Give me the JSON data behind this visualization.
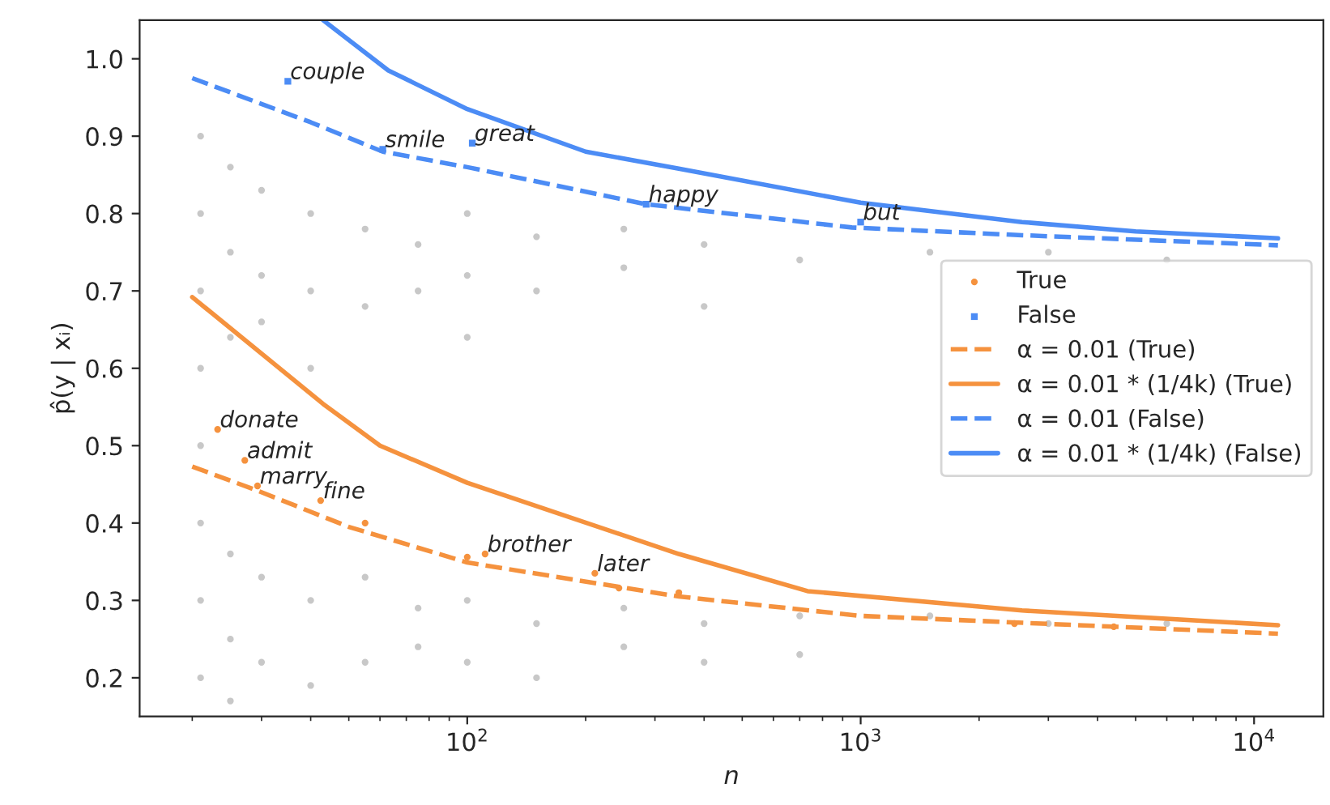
{
  "chart_data": {
    "type": "scatter",
    "xlabel": "n",
    "ylabel": "p̂(y | xᵢ)",
    "log": "x",
    "xlim": [
      14.7,
      15000
    ],
    "ylim": [
      0.15,
      1.05
    ],
    "xticks": [
      {
        "value": 100,
        "label": "10$^{2}$"
      },
      {
        "value": 1000,
        "label": "10$^{3}$"
      },
      {
        "value": 10000,
        "label": "10$^{4}$"
      }
    ],
    "yticks": [
      0.2,
      0.3,
      0.4,
      0.5,
      0.6,
      0.7,
      0.8,
      0.9,
      {
        "value": 1.0,
        "label": "1.0"
      }
    ],
    "grid": false,
    "legend": "center right",
    "series": [
      {
        "color": "#c8c8c8",
        "marker": "circle",
        "x": [
          21,
          21,
          21,
          21,
          21,
          21,
          21,
          21,
          25,
          25,
          25,
          25,
          25,
          25,
          30,
          30,
          30,
          30,
          30,
          40,
          40,
          40,
          40,
          40,
          55,
          55,
          55,
          55,
          75,
          75,
          75,
          75,
          100,
          100,
          100,
          100,
          100,
          150,
          150,
          150,
          150,
          250,
          250,
          250,
          250,
          400,
          400,
          400,
          400,
          700,
          700,
          700,
          1500,
          1500,
          3000,
          3000,
          6000,
          6000
        ],
        "values": [
          0.9,
          0.8,
          0.7,
          0.6,
          0.5,
          0.4,
          0.3,
          0.2,
          0.86,
          0.75,
          0.64,
          0.36,
          0.25,
          0.17,
          0.83,
          0.72,
          0.66,
          0.33,
          0.22,
          0.8,
          0.7,
          0.6,
          0.3,
          0.19,
          0.78,
          0.68,
          0.33,
          0.22,
          0.76,
          0.7,
          0.29,
          0.24,
          0.8,
          0.72,
          0.64,
          0.3,
          0.22,
          0.77,
          0.7,
          0.27,
          0.2,
          0.78,
          0.73,
          0.29,
          0.24,
          0.76,
          0.68,
          0.27,
          0.22,
          0.74,
          0.28,
          0.23,
          0.75,
          0.28,
          0.75,
          0.27,
          0.74,
          0.27
        ]
      },
      {
        "name": "True",
        "color": "#f5923e",
        "marker": "circle",
        "x": [
          23.2,
          27.2,
          29.3,
          42.4,
          55,
          100,
          111,
          211,
          243,
          345,
          2460,
          4400
        ],
        "values": [
          0.521,
          0.481,
          0.448,
          0.429,
          0.4,
          0.356,
          0.36,
          0.335,
          0.316,
          0.31,
          0.27,
          0.266
        ]
      },
      {
        "name": "False",
        "color": "#4c8cf5",
        "marker": "square",
        "x": [
          35,
          61,
          103,
          285,
          1000
        ],
        "values": [
          0.971,
          0.883,
          0.891,
          0.812,
          0.789
        ]
      },
      {
        "type": "line",
        "name": "α = 0.01 (True)",
        "color": "#f5923e",
        "line_style": "dashed",
        "marker": "none",
        "x": [
          20,
          29.6,
          50,
          100,
          345,
          1000,
          11500
        ],
        "values": [
          0.473,
          0.441,
          0.395,
          0.349,
          0.305,
          0.28,
          0.257
        ]
      },
      {
        "type": "line",
        "name": "α = 0.01 * (1/4k) (True)",
        "color": "#f5923e",
        "line_style": "solid",
        "marker": "none",
        "x": [
          20,
          43,
          60,
          100,
          345,
          733,
          2570,
          11500
        ],
        "values": [
          0.692,
          0.554,
          0.5,
          0.452,
          0.36,
          0.312,
          0.287,
          0.268
        ]
      },
      {
        "type": "line",
        "name": "α = 0.01 (False)",
        "color": "#4c8cf5",
        "line_style": "dashed",
        "marker": "none",
        "x": [
          20,
          40,
          61,
          100,
          285,
          950,
          2570,
          11500
        ],
        "values": [
          0.975,
          0.918,
          0.88,
          0.86,
          0.812,
          0.782,
          0.772,
          0.759
        ]
      },
      {
        "type": "line",
        "name": "α = 0.01 * (1/4k) (False)",
        "color": "#4c8cf5",
        "line_style": "solid",
        "marker": "none",
        "x": [
          43,
          63,
          100,
          200,
          345,
          1000,
          2570,
          5000,
          11500
        ],
        "values": [
          1.05,
          0.985,
          0.935,
          0.88,
          0.858,
          0.814,
          0.789,
          0.777,
          0.768
        ]
      }
    ],
    "annotations": [
      {
        "text": "couple",
        "x": 35,
        "y": 0.971
      },
      {
        "text": "smile",
        "x": 61,
        "y": 0.883
      },
      {
        "text": "great",
        "x": 103,
        "y": 0.891
      },
      {
        "text": "happy",
        "x": 285,
        "y": 0.812
      },
      {
        "text": "but",
        "x": 1000,
        "y": 0.789
      },
      {
        "text": "donate",
        "x": 23.2,
        "y": 0.521
      },
      {
        "text": "admit",
        "x": 27.2,
        "y": 0.481
      },
      {
        "text": "marry",
        "x": 29.3,
        "y": 0.448
      },
      {
        "text": "fine",
        "x": 42.4,
        "y": 0.429
      },
      {
        "text": "brother",
        "x": 111,
        "y": 0.36
      },
      {
        "text": "later",
        "x": 211,
        "y": 0.335
      }
    ]
  }
}
